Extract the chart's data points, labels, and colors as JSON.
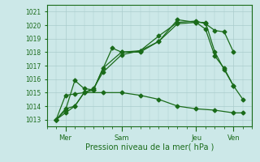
{
  "background_color": "#cce8e8",
  "grid_color": "#aacccc",
  "line_color": "#1a6b1a",
  "xlabel": "Pression niveau de la mer( hPa )",
  "ylim": [
    1012.5,
    1021.5
  ],
  "yticks": [
    1013,
    1014,
    1015,
    1016,
    1017,
    1018,
    1019,
    1020,
    1021
  ],
  "day_labels": [
    "Mer",
    "Sam",
    "Jeu",
    "Ven"
  ],
  "day_positions": [
    1,
    4,
    8,
    10
  ],
  "xlim": [
    0,
    11
  ],
  "series1": {
    "x": [
      0.5,
      1.0,
      1.5,
      2.0,
      2.5,
      3.0,
      4.0,
      5.0,
      6.0,
      7.0,
      8.0,
      8.5,
      9.0,
      9.5,
      10.0
    ],
    "y": [
      1013.0,
      1013.5,
      1014.0,
      1015.0,
      1015.3,
      1016.5,
      1017.8,
      1018.1,
      1019.2,
      1020.2,
      1020.3,
      1020.1,
      1019.6,
      1019.5,
      1018.0
    ]
  },
  "series2": {
    "x": [
      0.5,
      1.0,
      1.5,
      2.0,
      2.5,
      3.0,
      4.0,
      5.0,
      6.0,
      7.0,
      8.0,
      8.5,
      9.0,
      9.5,
      10.0
    ],
    "y": [
      1013.0,
      1013.8,
      1014.0,
      1015.0,
      1015.2,
      1016.8,
      1018.0,
      1018.1,
      1018.8,
      1020.1,
      1020.2,
      1020.2,
      1018.0,
      1016.7,
      1015.5
    ]
  },
  "series3": {
    "x": [
      0.5,
      1.0,
      1.5,
      2.0,
      2.5,
      3.5,
      4.0,
      5.0,
      6.0,
      7.0,
      8.0,
      8.5,
      9.0,
      9.5,
      10.0,
      10.5
    ],
    "y": [
      1013.0,
      1013.7,
      1015.9,
      1015.3,
      1015.2,
      1018.3,
      1018.0,
      1018.0,
      1018.8,
      1020.4,
      1020.2,
      1019.7,
      1017.7,
      1016.8,
      1015.5,
      1014.5
    ]
  },
  "series4": {
    "x": [
      0.5,
      1.0,
      1.5,
      2.0,
      3.0,
      4.0,
      5.0,
      6.0,
      7.0,
      8.0,
      9.0,
      10.0,
      10.5
    ],
    "y": [
      1013.0,
      1014.8,
      1014.9,
      1015.0,
      1015.0,
      1015.0,
      1014.8,
      1014.5,
      1014.0,
      1013.8,
      1013.7,
      1013.5,
      1013.5
    ]
  }
}
